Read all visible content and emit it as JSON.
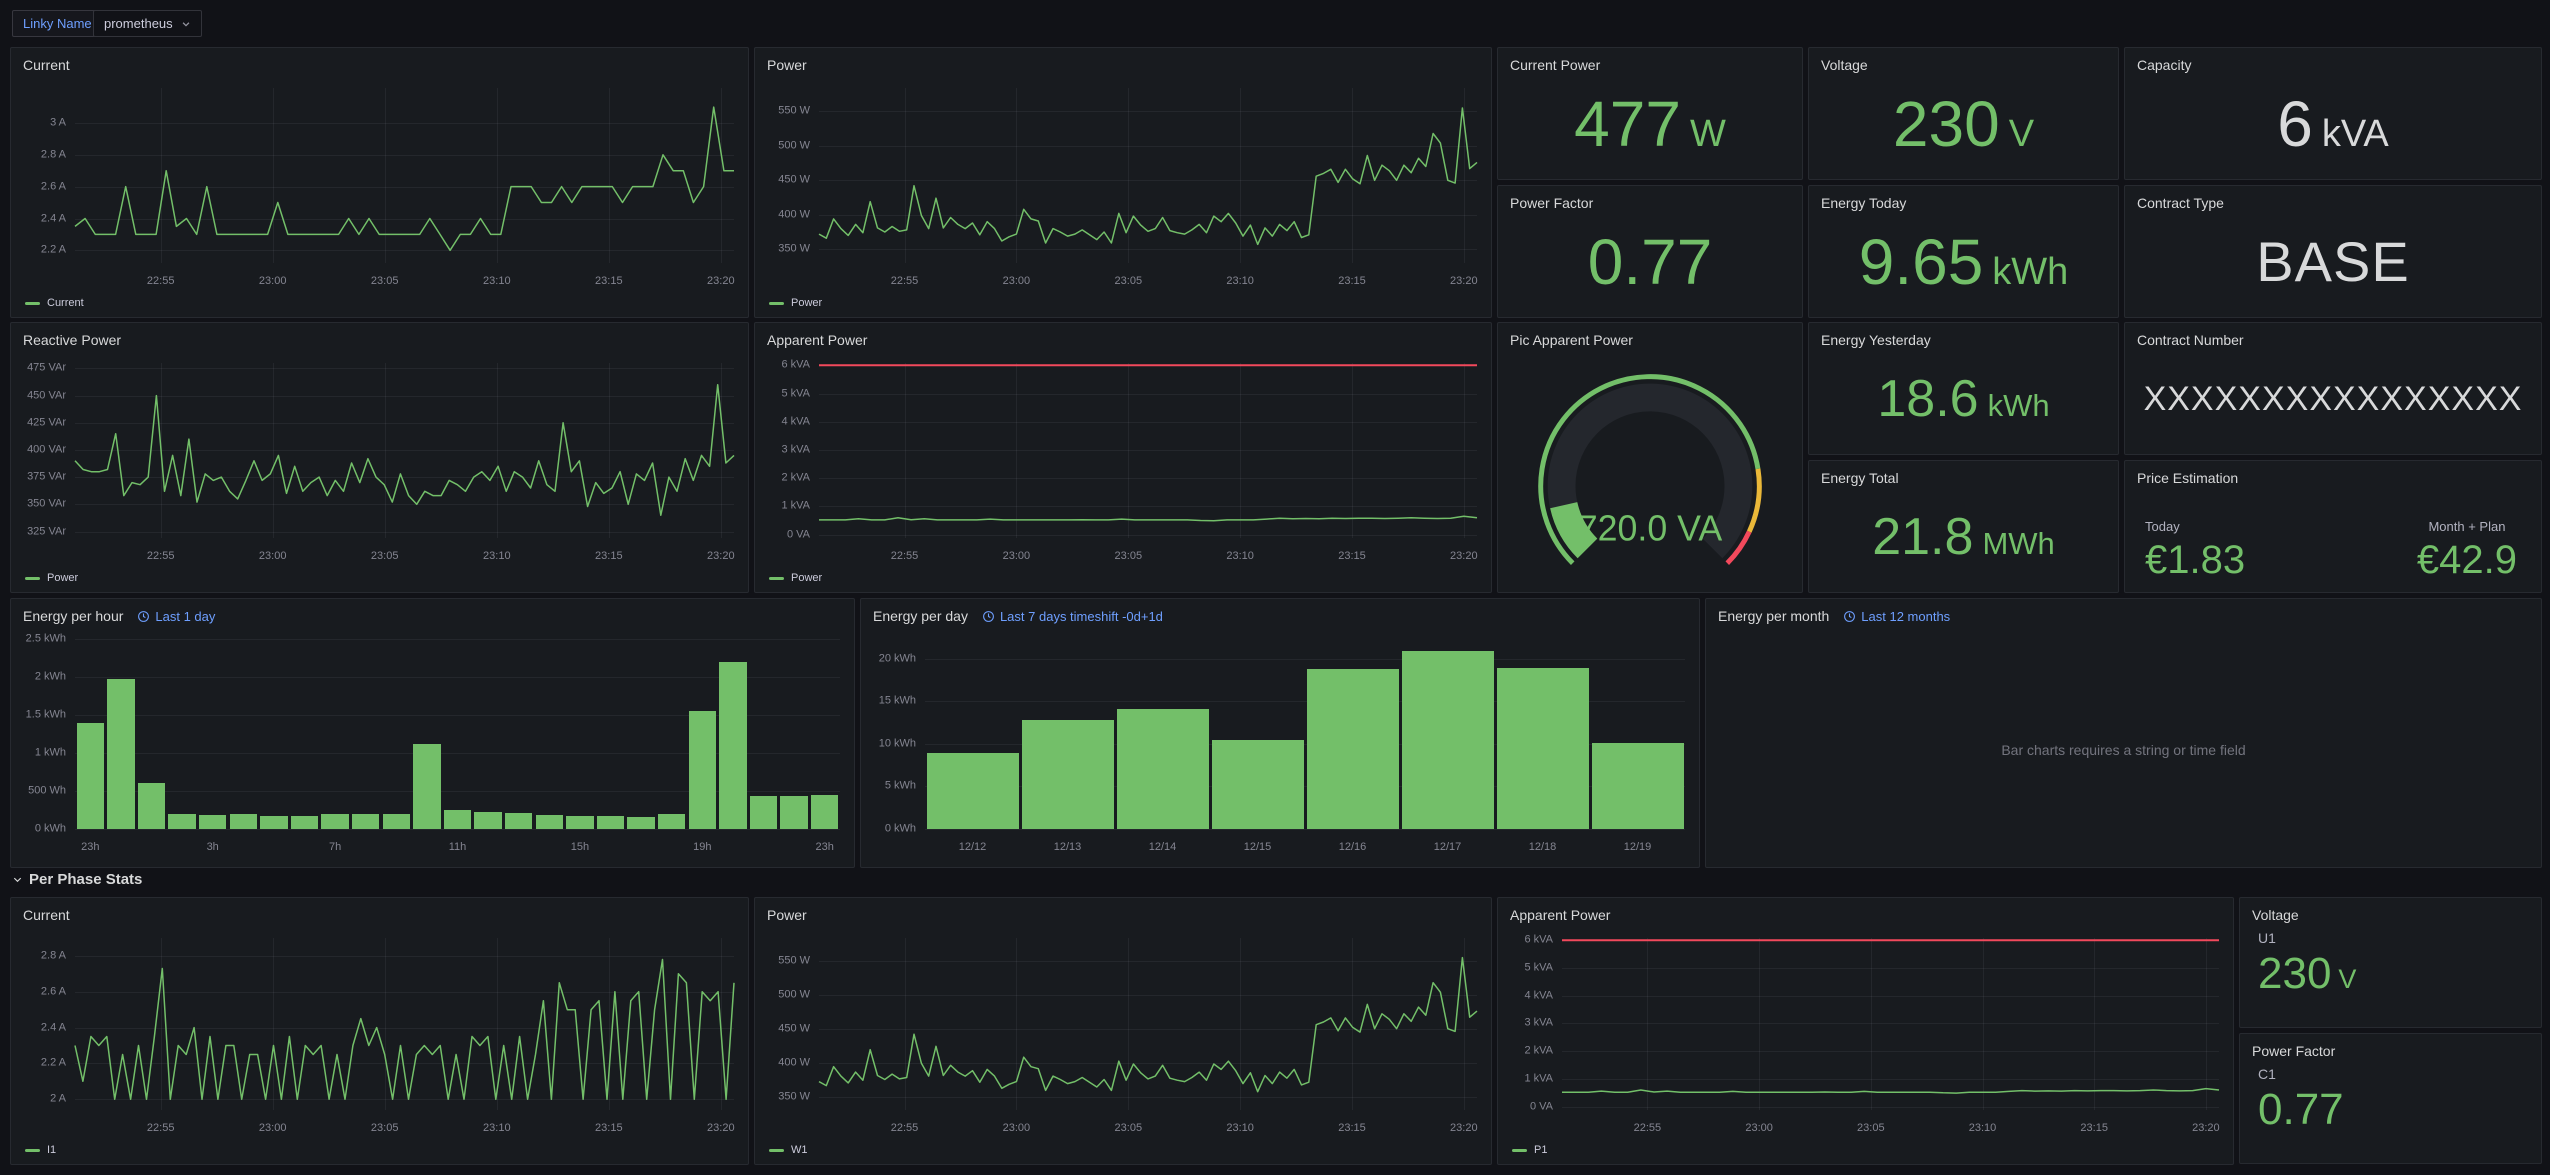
{
  "colors": {
    "green": "#73bf69",
    "red": "#f2495c",
    "yellow": "#eab839",
    "blue": "#6e9fff",
    "white": "#d8d9da",
    "track": "#24272d"
  },
  "header": {
    "variable_label": "Linky Name",
    "variable_value": "prometheus"
  },
  "section": {
    "title": "Per Phase Stats"
  },
  "time_axis": {
    "labels": [
      "22:55",
      "23:00",
      "23:05",
      "23:10",
      "23:15",
      "23:20"
    ],
    "fractions": [
      0.13,
      0.3,
      0.47,
      0.64,
      0.81,
      0.98
    ]
  },
  "panels": {
    "current": {
      "type": "line",
      "title": "Current",
      "legend": "Current",
      "ylim": [
        2.12,
        3.22
      ],
      "yticks": [
        {
          "v": 2.2,
          "label": "2.2 A"
        },
        {
          "v": 2.4,
          "label": "2.4 A"
        },
        {
          "v": 2.6,
          "label": "2.6 A"
        },
        {
          "v": 2.8,
          "label": "2.8 A"
        },
        {
          "v": 3,
          "label": "3 A"
        }
      ],
      "values": [
        2.35,
        2.4,
        2.3,
        2.3,
        2.3,
        2.6,
        2.3,
        2.3,
        2.3,
        2.7,
        2.35,
        2.4,
        2.3,
        2.6,
        2.3,
        2.3,
        2.3,
        2.3,
        2.3,
        2.3,
        2.5,
        2.3,
        2.3,
        2.3,
        2.3,
        2.3,
        2.3,
        2.4,
        2.3,
        2.4,
        2.3,
        2.3,
        2.3,
        2.3,
        2.3,
        2.4,
        2.3,
        2.2,
        2.3,
        2.3,
        2.4,
        2.3,
        2.3,
        2.6,
        2.6,
        2.6,
        2.5,
        2.5,
        2.6,
        2.5,
        2.6,
        2.6,
        2.6,
        2.6,
        2.5,
        2.6,
        2.6,
        2.6,
        2.8,
        2.7,
        2.7,
        2.5,
        2.6,
        3.1,
        2.7,
        2.7
      ]
    },
    "power": {
      "type": "line",
      "title": "Power",
      "legend": "Power",
      "ylim": [
        330,
        584
      ],
      "yticks": [
        {
          "v": 350,
          "label": "350 W"
        },
        {
          "v": 400,
          "label": "400 W"
        },
        {
          "v": 450,
          "label": "450 W"
        },
        {
          "v": 500,
          "label": "500 W"
        },
        {
          "v": 550,
          "label": "550 W"
        }
      ],
      "values": [
        372,
        366,
        394,
        380,
        370,
        386,
        374,
        419,
        381,
        375,
        383,
        376,
        378,
        442,
        399,
        380,
        424,
        381,
        396,
        386,
        380,
        388,
        371,
        390,
        380,
        362,
        368,
        372,
        408,
        394,
        391,
        359,
        380,
        375,
        369,
        372,
        378,
        371,
        364,
        375,
        359,
        402,
        374,
        398,
        385,
        376,
        380,
        396,
        377,
        374,
        372,
        378,
        386,
        374,
        398,
        390,
        402,
        388,
        369,
        385,
        357,
        381,
        369,
        386,
        377,
        390,
        367,
        371,
        456,
        460,
        466,
        447,
        466,
        452,
        445,
        486,
        450,
        472,
        464,
        450,
        472,
        461,
        482,
        470,
        518,
        504,
        450,
        446,
        555,
        467,
        476
      ]
    },
    "reactive_power": {
      "type": "line",
      "title": "Reactive Power",
      "legend": "Power",
      "ylim": [
        319,
        480
      ],
      "yticks": [
        {
          "v": 325,
          "label": "325 VAr"
        },
        {
          "v": 350,
          "label": "350 VAr"
        },
        {
          "v": 375,
          "label": "375 VAr"
        },
        {
          "v": 400,
          "label": "400 VAr"
        },
        {
          "v": 425,
          "label": "425 VAr"
        },
        {
          "v": 450,
          "label": "450 VAr"
        },
        {
          "v": 475,
          "label": "475 VAr"
        }
      ],
      "values": [
        390,
        382,
        380,
        380,
        382,
        415,
        358,
        370,
        368,
        375,
        450,
        362,
        395,
        358,
        410,
        352,
        378,
        372,
        375,
        362,
        355,
        372,
        390,
        372,
        378,
        395,
        360,
        385,
        362,
        370,
        375,
        358,
        372,
        362,
        388,
        370,
        392,
        375,
        368,
        352,
        378,
        358,
        350,
        362,
        358,
        358,
        372,
        368,
        362,
        375,
        380,
        372,
        385,
        362,
        380,
        375,
        365,
        390,
        368,
        362,
        425,
        380,
        390,
        348,
        370,
        360,
        365,
        380,
        350,
        378,
        372,
        388,
        340,
        375,
        362,
        392,
        372,
        395,
        385,
        460,
        388,
        395
      ]
    },
    "apparent_power": {
      "type": "line",
      "title": "Apparent Power",
      "legend": "Power",
      "ylim": [
        -0.12,
        6.08
      ],
      "threshold": 6,
      "yticks": [
        {
          "v": 0,
          "label": "0 VA"
        },
        {
          "v": 1,
          "label": "1 kVA"
        },
        {
          "v": 2,
          "label": "2 kVA"
        },
        {
          "v": 3,
          "label": "3 kVA"
        },
        {
          "v": 4,
          "label": "4 kVA"
        },
        {
          "v": 5,
          "label": "5 kVA"
        },
        {
          "v": 6,
          "label": "6 kVA"
        }
      ],
      "values": [
        0.52,
        0.52,
        0.52,
        0.56,
        0.52,
        0.52,
        0.6,
        0.53,
        0.56,
        0.52,
        0.52,
        0.52,
        0.52,
        0.55,
        0.52,
        0.52,
        0.52,
        0.52,
        0.52,
        0.52,
        0.53,
        0.52,
        0.52,
        0.55,
        0.52,
        0.52,
        0.52,
        0.52,
        0.52,
        0.5,
        0.49,
        0.52,
        0.52,
        0.52,
        0.55,
        0.58,
        0.56,
        0.57,
        0.56,
        0.58,
        0.57,
        0.58,
        0.58,
        0.57,
        0.58,
        0.6,
        0.58,
        0.57,
        0.58,
        0.65,
        0.6
      ]
    },
    "phase_current": {
      "type": "line",
      "title": "Current",
      "legend": "I1",
      "ylim": [
        1.94,
        2.9
      ],
      "yticks": [
        {
          "v": 2,
          "label": "2 A"
        },
        {
          "v": 2.2,
          "label": "2.2 A"
        },
        {
          "v": 2.4,
          "label": "2.4 A"
        },
        {
          "v": 2.6,
          "label": "2.6 A"
        },
        {
          "v": 2.8,
          "label": "2.8 A"
        }
      ],
      "values": [
        2.3,
        2.1,
        2.35,
        2.3,
        2.35,
        2.0,
        2.25,
        2.0,
        2.3,
        2.0,
        2.35,
        2.73,
        2.0,
        2.3,
        2.25,
        2.4,
        2.0,
        2.35,
        2.0,
        2.3,
        2.3,
        2.0,
        2.25,
        2.25,
        2.0,
        2.3,
        2.0,
        2.35,
        2.0,
        2.3,
        2.25,
        2.3,
        2.0,
        2.25,
        2.0,
        2.3,
        2.45,
        2.3,
        2.4,
        2.25,
        2.0,
        2.3,
        2.0,
        2.25,
        2.3,
        2.25,
        2.3,
        2.0,
        2.25,
        2.0,
        2.35,
        2.3,
        2.35,
        2.0,
        2.3,
        2.0,
        2.35,
        2.0,
        2.25,
        2.55,
        2.0,
        2.65,
        2.5,
        2.5,
        2.0,
        2.5,
        2.55,
        2.0,
        2.6,
        2.0,
        2.55,
        2.6,
        2.0,
        2.5,
        2.78,
        2.0,
        2.7,
        2.65,
        2.0,
        2.6,
        2.55,
        2.6,
        2.0,
        2.65
      ]
    },
    "phase_power": {
      "type": "line",
      "title": "Power",
      "legend": "W1",
      "ylim": [
        330,
        584
      ],
      "yticks": [
        {
          "v": 350,
          "label": "350 W"
        },
        {
          "v": 400,
          "label": "400 W"
        },
        {
          "v": 450,
          "label": "450 W"
        },
        {
          "v": 500,
          "label": "500 W"
        },
        {
          "v": 550,
          "label": "550 W"
        }
      ],
      "values": [
        372,
        366,
        394,
        380,
        370,
        386,
        374,
        419,
        381,
        375,
        383,
        376,
        378,
        442,
        399,
        380,
        424,
        381,
        396,
        386,
        380,
        388,
        371,
        390,
        380,
        362,
        368,
        372,
        408,
        394,
        391,
        359,
        380,
        375,
        369,
        372,
        378,
        371,
        364,
        375,
        359,
        402,
        374,
        398,
        385,
        376,
        380,
        396,
        377,
        374,
        372,
        378,
        386,
        374,
        398,
        390,
        402,
        388,
        369,
        385,
        357,
        381,
        369,
        386,
        377,
        390,
        367,
        371,
        456,
        460,
        466,
        447,
        466,
        452,
        445,
        486,
        450,
        472,
        464,
        450,
        472,
        461,
        482,
        470,
        518,
        504,
        450,
        446,
        555,
        467,
        476
      ]
    },
    "phase_apparent": {
      "type": "line",
      "title": "Apparent Power",
      "legend": "P1",
      "ylim": [
        -0.12,
        6.08
      ],
      "threshold": 6,
      "yticks": [
        {
          "v": 0,
          "label": "0 VA"
        },
        {
          "v": 1,
          "label": "1 kVA"
        },
        {
          "v": 2,
          "label": "2 kVA"
        },
        {
          "v": 3,
          "label": "3 kVA"
        },
        {
          "v": 4,
          "label": "4 kVA"
        },
        {
          "v": 5,
          "label": "5 kVA"
        },
        {
          "v": 6,
          "label": "6 kVA"
        }
      ],
      "values": [
        0.52,
        0.52,
        0.52,
        0.56,
        0.52,
        0.52,
        0.6,
        0.53,
        0.56,
        0.52,
        0.52,
        0.52,
        0.52,
        0.55,
        0.52,
        0.52,
        0.52,
        0.52,
        0.52,
        0.52,
        0.53,
        0.52,
        0.52,
        0.55,
        0.52,
        0.52,
        0.52,
        0.52,
        0.52,
        0.5,
        0.49,
        0.52,
        0.52,
        0.52,
        0.55,
        0.58,
        0.56,
        0.57,
        0.56,
        0.58,
        0.57,
        0.58,
        0.58,
        0.57,
        0.58,
        0.6,
        0.58,
        0.57,
        0.58,
        0.65,
        0.6
      ]
    },
    "energy_per_hour": {
      "type": "bars",
      "title": "Energy per hour",
      "link": "Last 1 day",
      "ylim": [
        0,
        2.5
      ],
      "yticks": [
        {
          "v": 0,
          "label": "0 kWh"
        },
        {
          "v": 0.5,
          "label": "500 Wh"
        },
        {
          "v": 1,
          "label": "1 kWh"
        },
        {
          "v": 1.5,
          "label": "1.5 kWh"
        },
        {
          "v": 2,
          "label": "2 kWh"
        },
        {
          "v": 2.5,
          "label": "2.5 kWh"
        }
      ],
      "values": [
        1.4,
        1.97,
        0.6,
        0.2,
        0.19,
        0.2,
        0.17,
        0.17,
        0.2,
        0.2,
        0.2,
        1.12,
        0.25,
        0.22,
        0.21,
        0.19,
        0.17,
        0.17,
        0.16,
        0.2,
        1.55,
        2.2,
        0.44,
        0.44,
        0.45
      ],
      "xlabels": [
        {
          "i": 0,
          "t": "23h"
        },
        {
          "i": 4,
          "t": "3h"
        },
        {
          "i": 8,
          "t": "7h"
        },
        {
          "i": 12,
          "t": "11h"
        },
        {
          "i": 16,
          "t": "15h"
        },
        {
          "i": 20,
          "t": "19h"
        },
        {
          "i": 24,
          "t": "23h"
        }
      ]
    },
    "energy_per_day": {
      "type": "bars",
      "title": "Energy per day",
      "link": "Last 7 days timeshift -0d+1d",
      "ylim": [
        0,
        22.3
      ],
      "yticks": [
        {
          "v": 0,
          "label": "0 kWh"
        },
        {
          "v": 5,
          "label": "5 kWh"
        },
        {
          "v": 10,
          "label": "10 kWh"
        },
        {
          "v": 15,
          "label": "15 kWh"
        },
        {
          "v": 20,
          "label": "20 kWh"
        }
      ],
      "values": [
        8.9,
        12.8,
        14.1,
        10.5,
        18.8,
        20.9,
        18.9,
        10.1
      ],
      "xlabels": [
        {
          "i": 0,
          "t": "12/12"
        },
        {
          "i": 1,
          "t": "12/13"
        },
        {
          "i": 2,
          "t": "12/14"
        },
        {
          "i": 3,
          "t": "12/15"
        },
        {
          "i": 4,
          "t": "12/16"
        },
        {
          "i": 5,
          "t": "12/17"
        },
        {
          "i": 6,
          "t": "12/18"
        },
        {
          "i": 7,
          "t": "12/19"
        }
      ]
    },
    "energy_per_month": {
      "title": "Energy per month",
      "link": "Last 12 months",
      "message": "Bar charts requires a string or time field"
    },
    "pic_apparent_power": {
      "title": "Pic Apparent Power",
      "min": 0,
      "max": 6000,
      "value": 720,
      "display": "720.0 VA",
      "thresholds": [
        {
          "upto": 0.8,
          "color": "green"
        },
        {
          "upto": 0.925,
          "color": "yellow"
        },
        {
          "upto": 1,
          "color": "red"
        }
      ]
    },
    "stats": {
      "current_power": {
        "title": "Current Power",
        "value": "477",
        "unit": "W",
        "color": "green"
      },
      "voltage": {
        "title": "Voltage",
        "value": "230",
        "unit": "V",
        "color": "green"
      },
      "capacity": {
        "title": "Capacity",
        "value": "6",
        "unit": "kVA",
        "color": "white"
      },
      "power_factor": {
        "title": "Power Factor",
        "value": "0.77",
        "unit": "",
        "color": "green"
      },
      "energy_today": {
        "title": "Energy Today",
        "value": "9.65",
        "unit": "kWh",
        "color": "green"
      },
      "contract_type": {
        "title": "Contract Type",
        "value": "BASE",
        "unit": "",
        "color": "white"
      },
      "energy_yesterday": {
        "title": "Energy Yesterday",
        "value": "18.6",
        "unit": "kWh",
        "color": "green"
      },
      "contract_number": {
        "title": "Contract Number",
        "value": "XXXXXXXXXXXXXXXX",
        "unit": "",
        "color": "white"
      },
      "energy_total": {
        "title": "Energy Total",
        "value": "21.8",
        "unit": "MWh",
        "color": "green"
      },
      "phase_voltage": {
        "title": "Voltage",
        "field": "U1",
        "value": "230",
        "unit": "V",
        "color": "green"
      },
      "phase_power_factor": {
        "title": "Power Factor",
        "field": "C1",
        "value": "0.77",
        "unit": "",
        "color": "green"
      }
    },
    "price_estimation": {
      "title": "Price Estimation",
      "items": [
        {
          "label": "Today",
          "value": "€1.83"
        },
        {
          "label": "Month + Plan",
          "value": "€42.9"
        }
      ]
    }
  }
}
